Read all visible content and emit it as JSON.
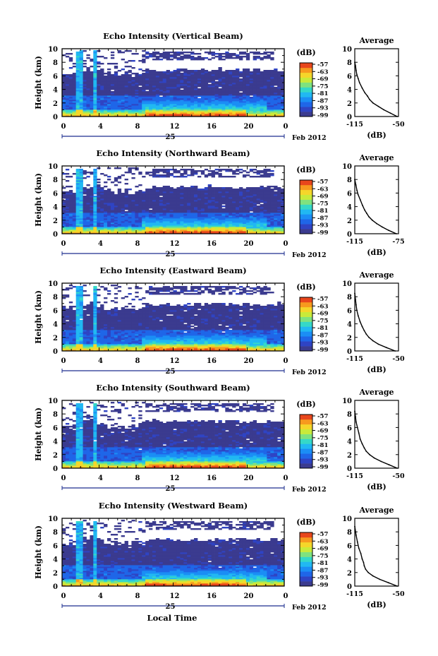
{
  "figure": {
    "xlabel": "Local Time",
    "date_label": "Feb 2012",
    "day_label": "25",
    "unit_label": "(dB)",
    "average_title": "Average",
    "average_xlabel": "(dB)"
  },
  "colormap": [
    "#3b3b8f",
    "#2f44c4",
    "#1f66e8",
    "#1b8ef5",
    "#21b8f2",
    "#35d8c8",
    "#7fe27f",
    "#c9ea3a",
    "#f5d62a",
    "#f79a1e",
    "#e8461c"
  ],
  "chart_data": [
    {
      "type": "heatmap",
      "title": "Echo Intensity (Vertical Beam)",
      "ylabel": "Height (km)",
      "xlim": [
        0,
        24
      ],
      "ylim": [
        0,
        10
      ],
      "xticks": [
        "0",
        "4",
        "8",
        "12",
        "16",
        "20",
        "0"
      ],
      "yticks": [
        "0",
        "2",
        "4",
        "6",
        "8",
        "10"
      ],
      "colorbar_ticks": [
        "-57",
        "-63",
        "-69",
        "-75",
        "-81",
        "-87",
        "-93",
        "-99"
      ],
      "average": {
        "xlim": [
          -115,
          -50
        ],
        "xticks": [
          "-115",
          "-50"
        ],
        "x": [
          -52,
          -62,
          -72,
          -80,
          -88,
          -93,
          -96,
          -100,
          -104,
          -108,
          -110,
          -112,
          -113,
          -114,
          -115
        ],
        "y": [
          0,
          0.5,
          1,
          1.5,
          2,
          2.5,
          3,
          3.5,
          4.2,
          5,
          5.6,
          6.2,
          6.8,
          7.5,
          8
        ]
      }
    },
    {
      "type": "heatmap",
      "title": "Echo Intensity (Northward Beam)",
      "ylabel": "Height (km)",
      "xlim": [
        0,
        24
      ],
      "ylim": [
        0,
        10
      ],
      "xticks": [
        "0",
        "4",
        "8",
        "12",
        "16",
        "20",
        "0"
      ],
      "yticks": [
        "0",
        "2",
        "4",
        "6",
        "8",
        "10"
      ],
      "colorbar_ticks": [
        "-57",
        "-63",
        "-69",
        "-75",
        "-81",
        "-87",
        "-93",
        "-99"
      ],
      "average": {
        "xlim": [
          -115,
          -75
        ],
        "xticks": [
          "-115",
          "-75"
        ],
        "x": [
          -77,
          -84,
          -90,
          -95,
          -99,
          -102,
          -104,
          -106,
          -108,
          -110,
          -112,
          -113,
          -114,
          -115
        ],
        "y": [
          0,
          0.5,
          1,
          1.5,
          2,
          2.5,
          3,
          3.5,
          4.2,
          5,
          5.8,
          6.4,
          7.2,
          8
        ]
      }
    },
    {
      "type": "heatmap",
      "title": "Echo Intensity (Eastward Beam)",
      "ylabel": "Height (km)",
      "xlim": [
        0,
        24
      ],
      "ylim": [
        0,
        10
      ],
      "xticks": [
        "0",
        "4",
        "8",
        "12",
        "16",
        "20",
        "0"
      ],
      "yticks": [
        "0",
        "2",
        "4",
        "6",
        "8",
        "10"
      ],
      "colorbar_ticks": [
        "-57",
        "-63",
        "-69",
        "-75",
        "-81",
        "-87",
        "-93",
        "-99"
      ],
      "average": {
        "xlim": [
          -115,
          -50
        ],
        "xticks": [
          "-115",
          "-50"
        ],
        "x": [
          -55,
          -68,
          -80,
          -88,
          -94,
          -98,
          -101,
          -104,
          -107,
          -110,
          -112,
          -113,
          -114,
          -115
        ],
        "y": [
          0,
          0.5,
          1,
          1.5,
          2,
          2.5,
          3,
          3.6,
          4.3,
          5.2,
          6,
          6.8,
          7.6,
          8.5
        ]
      }
    },
    {
      "type": "heatmap",
      "title": "Echo Intensity (Southward Beam)",
      "ylabel": "Height (km)",
      "xlim": [
        0,
        24
      ],
      "ylim": [
        0,
        10
      ],
      "xticks": [
        "0",
        "4",
        "8",
        "12",
        "16",
        "20",
        "0"
      ],
      "yticks": [
        "0",
        "2",
        "4",
        "6",
        "8",
        "10"
      ],
      "colorbar_ticks": [
        "-57",
        "-63",
        "-69",
        "-75",
        "-81",
        "-87",
        "-93",
        "-99"
      ],
      "average": {
        "xlim": [
          -115,
          -50
        ],
        "xticks": [
          "-115",
          "-50"
        ],
        "x": [
          -52,
          -64,
          -76,
          -86,
          -93,
          -98,
          -101,
          -104,
          -107,
          -109,
          -111,
          -113,
          -114,
          -115
        ],
        "y": [
          0,
          0.5,
          1,
          1.5,
          2,
          2.5,
          3,
          3.6,
          4.3,
          5.2,
          6,
          6.8,
          7.6,
          8.4
        ]
      }
    },
    {
      "type": "heatmap",
      "title": "Echo Intensity (Westward Beam)",
      "ylabel": "Height (km)",
      "xlim": [
        0,
        24
      ],
      "ylim": [
        0,
        10
      ],
      "xticks": [
        "0",
        "4",
        "8",
        "12",
        "16",
        "20",
        "0"
      ],
      "yticks": [
        "0",
        "2",
        "4",
        "6",
        "8",
        "10"
      ],
      "colorbar_ticks": [
        "-57",
        "-63",
        "-69",
        "-75",
        "-81",
        "-87",
        "-93",
        "-99"
      ],
      "average": {
        "xlim": [
          -115,
          -50
        ],
        "xticks": [
          "-115",
          "-50"
        ],
        "x": [
          -52,
          -65,
          -78,
          -88,
          -95,
          -99,
          -101,
          -102,
          -104,
          -106,
          -109,
          -111,
          -113,
          -115
        ],
        "y": [
          0,
          0.5,
          1,
          1.5,
          2,
          2.5,
          3,
          3.5,
          4,
          4.8,
          5.6,
          6.5,
          7.5,
          8.8
        ]
      }
    }
  ]
}
